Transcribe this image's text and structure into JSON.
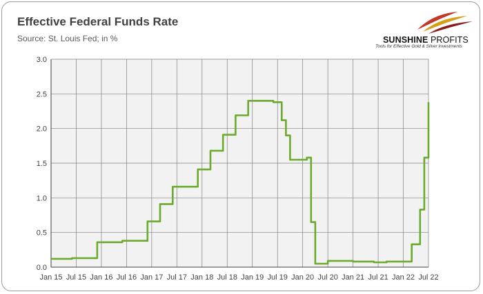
{
  "header": {
    "title": "Effective Federal Funds Rate",
    "subtitle": "Source: St. Louis Fed; in %"
  },
  "logo": {
    "brand_bold": "SUNSHINE",
    "brand_rest": " PROFITS",
    "tagline": "Tools for Effective Gold & Silver Investments",
    "colors": [
      "#c0392b",
      "#d4a017",
      "#8b1a1a"
    ]
  },
  "colors": {
    "series": "#6aaa2c",
    "plot_bg": "#f2f2f2",
    "grid": "#7f7f7f"
  },
  "chart_data": {
    "type": "line",
    "title": "Effective Federal Funds Rate",
    "ylim": [
      0,
      3.0
    ],
    "y_ticks": [
      "0.0",
      "0.5",
      "1.0",
      "1.5",
      "2.0",
      "2.5",
      "3.0"
    ],
    "x_ticks": [
      "Jan 15",
      "Jul 15",
      "Jan 16",
      "Jul 16",
      "Jan 17",
      "Jul 17",
      "Jan 18",
      "Jul 18",
      "Jan 19",
      "Jul 19",
      "Jan 20",
      "Jul 20",
      "Jan 21",
      "Jul 21",
      "Jan 22",
      "Jul 22"
    ],
    "grid": true,
    "legend": "none",
    "series": [
      {
        "x": [
          "2015-01",
          "2015-06",
          "2015-12",
          "2016-06",
          "2016-12",
          "2017-03",
          "2017-06",
          "2017-12",
          "2018-03",
          "2018-06",
          "2018-09",
          "2018-12",
          "2019-06",
          "2019-08",
          "2019-09",
          "2019-10",
          "2020-02",
          "2020-03",
          "2020-04",
          "2020-07",
          "2021-01",
          "2021-06",
          "2021-09",
          "2022-02",
          "2022-03",
          "2022-05",
          "2022-06",
          "2022-07"
        ],
        "values": [
          0.12,
          0.13,
          0.36,
          0.38,
          0.66,
          0.91,
          1.16,
          1.41,
          1.68,
          1.91,
          2.19,
          2.4,
          2.38,
          2.12,
          1.9,
          1.55,
          1.58,
          0.65,
          0.05,
          0.09,
          0.08,
          0.07,
          0.08,
          0.08,
          0.33,
          0.83,
          1.58,
          2.38
        ]
      }
    ]
  }
}
